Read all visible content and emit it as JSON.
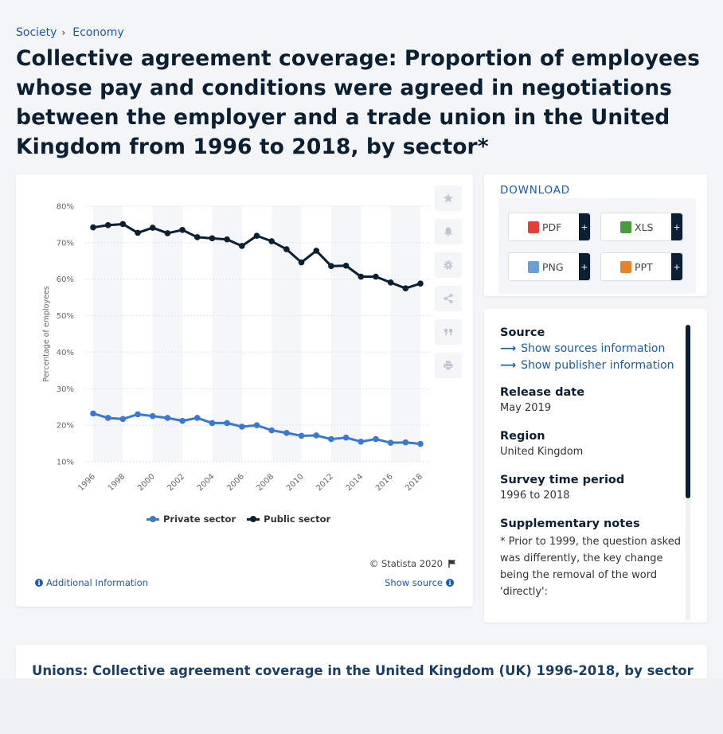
{
  "breadcrumb": {
    "items": [
      "Society",
      "Economy"
    ],
    "separator": "›"
  },
  "page_title": "Collective agreement coverage: Proportion of employees whose pay and conditions were agreed in negotiations between the employer and a trade union in the United Kingdom from 1996 to 2018, by sector*",
  "chart": {
    "copyright": "© Statista 2020",
    "additional_info": "Additional Information",
    "show_source": "Show source"
  },
  "toolbar": {
    "items": [
      "star-icon",
      "bell-icon",
      "gear-icon",
      "share-icon",
      "quote-icon",
      "print-icon"
    ]
  },
  "download": {
    "title": "DOWNLOAD",
    "buttons": [
      {
        "label": "PDF",
        "plus": "+",
        "color": "#e2403c"
      },
      {
        "label": "XLS",
        "plus": "+",
        "color": "#4a9a3e"
      },
      {
        "label": "PNG",
        "plus": "+",
        "color": "#6aa0d6"
      },
      {
        "label": "PPT",
        "plus": "+",
        "color": "#e8832c"
      }
    ]
  },
  "info": {
    "source_heading": "Source",
    "show_sources": "Show sources information",
    "show_publisher": "Show publisher information",
    "release_heading": "Release date",
    "release_value": "May 2019",
    "region_heading": "Region",
    "region_value": "United Kingdom",
    "survey_heading": "Survey time period",
    "survey_value": "1996 to 2018",
    "notes_heading": "Supplementary notes",
    "notes_value": "* Prior to 1999, the question asked was differently, the key change being the removal of the word 'directly':"
  },
  "bottom": {
    "title": "Unions: Collective agreement coverage in the United Kingdom (UK) 1996-2018, by sector"
  },
  "chart_data": {
    "type": "line",
    "x": [
      1996,
      1997,
      1998,
      1999,
      2000,
      2001,
      2002,
      2003,
      2004,
      2005,
      2006,
      2007,
      2008,
      2009,
      2010,
      2011,
      2012,
      2013,
      2014,
      2015,
      2016,
      2017,
      2018
    ],
    "x_tick_labels": [
      "1996",
      "1998",
      "2000",
      "2002",
      "2004",
      "2006",
      "2008",
      "2010",
      "2012",
      "2014",
      "2016",
      "2018"
    ],
    "series": [
      {
        "name": "Private sector",
        "color": "#3a78d4",
        "values": [
          23.2,
          22.0,
          21.7,
          23.0,
          22.5,
          22.0,
          21.2,
          22.0,
          20.6,
          20.6,
          19.6,
          20.0,
          18.6,
          17.9,
          17.1,
          17.2,
          16.2,
          16.6,
          15.5,
          16.2,
          15.2,
          15.3,
          14.9
        ]
      },
      {
        "name": "Public sector",
        "color": "#0b1f33",
        "values": [
          74.2,
          74.8,
          75.1,
          72.7,
          74.1,
          72.6,
          73.5,
          71.5,
          71.2,
          70.9,
          69.1,
          71.9,
          70.4,
          68.2,
          64.6,
          67.8,
          63.6,
          63.7,
          60.7,
          60.7,
          59.1,
          57.5,
          58.8
        ]
      }
    ],
    "ylabel": "Percentage of employees",
    "y_ticks": [
      "10%",
      "20%",
      "30%",
      "40%",
      "50%",
      "60%",
      "70%",
      "80%"
    ],
    "ylim": [
      10,
      80
    ],
    "grid": true,
    "legend_position": "bottom-center"
  }
}
